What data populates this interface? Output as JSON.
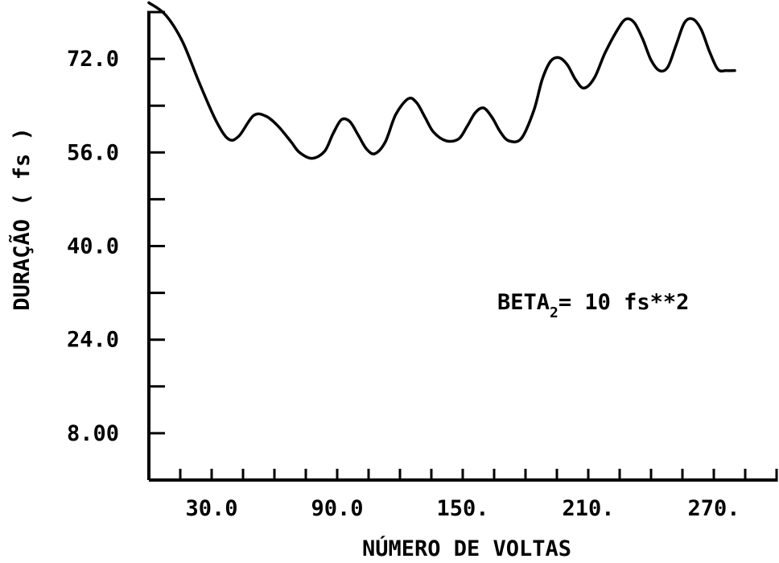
{
  "chart_data": {
    "type": "line",
    "title": "",
    "xlabel": "NÚMERO DE VOLTAS",
    "ylabel": "DURAÇÃO ( fs )",
    "xlim": [
      0,
      300
    ],
    "ylim": [
      0,
      80
    ],
    "x_ticks": [
      0,
      15,
      30,
      45,
      60,
      75,
      90,
      105,
      120,
      135,
      150,
      165,
      180,
      195,
      210,
      225,
      240,
      255,
      270,
      285,
      300
    ],
    "x_tick_labels": [
      {
        "value": 30,
        "label": "30.0"
      },
      {
        "value": 90,
        "label": "90.0"
      },
      {
        "value": 150,
        "label": "150."
      },
      {
        "value": 210,
        "label": "210."
      },
      {
        "value": 270,
        "label": "270."
      }
    ],
    "y_ticks": [
      0,
      8,
      16,
      24,
      32,
      40,
      48,
      56,
      64,
      72,
      80
    ],
    "y_tick_labels": [
      {
        "value": 8,
        "label": "8.00"
      },
      {
        "value": 24,
        "label": "24.0"
      },
      {
        "value": 40,
        "label": "40.0"
      },
      {
        "value": 56,
        "label": "56.0"
      },
      {
        "value": 72,
        "label": "72.0"
      }
    ],
    "annotation": {
      "main": "BETA",
      "sub": "2",
      "rest": "= 10 fs**2"
    },
    "grid": false,
    "series": [
      {
        "x": [
          0,
          8,
          16,
          24,
          32,
          38,
          43,
          50,
          56,
          62,
          68,
          72,
          78,
          84,
          88,
          92,
          96,
          100,
          104,
          108,
          113,
          118,
          124,
          128,
          132,
          136,
          142,
          148,
          152,
          156,
          160,
          164,
          168,
          172,
          178,
          184,
          188,
          192,
          196,
          200,
          204,
          208,
          213,
          218,
          224,
          228,
          232,
          236,
          240,
          244,
          248,
          252,
          256,
          260,
          264,
          268,
          272,
          276,
          280
        ],
        "y": [
          81.6,
          79.5,
          75,
          68,
          61.5,
          58.3,
          58.8,
          62.3,
          62.2,
          60.4,
          57.8,
          56,
          55,
          56.2,
          59.2,
          61.6,
          61.3,
          59,
          56.6,
          55.8,
          57.8,
          62.5,
          65.2,
          64.5,
          62,
          59.5,
          58,
          58.3,
          60.4,
          62.8,
          63.6,
          62,
          59.5,
          58,
          58.4,
          63.2,
          68.5,
          71.6,
          72.2,
          71,
          68.4,
          67,
          68.8,
          73,
          77,
          78.8,
          78.2,
          75.4,
          71.8,
          70,
          70.6,
          74.4,
          78.2,
          78.8,
          77,
          73.2,
          70.2,
          70,
          70
        ]
      }
    ]
  }
}
